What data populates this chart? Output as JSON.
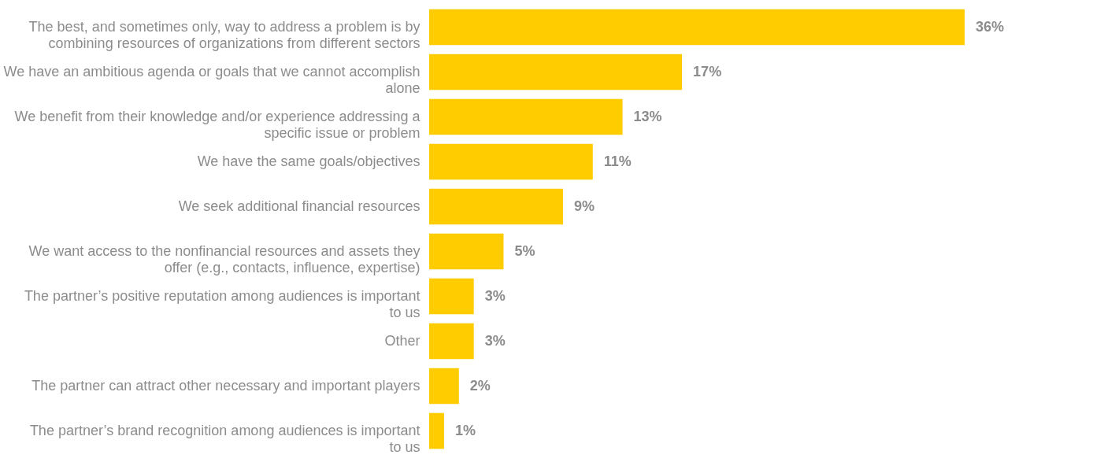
{
  "chart_data": {
    "type": "bar",
    "orientation": "horizontal",
    "color": "#ffcc00",
    "categories": [
      "The best, and sometimes only, way to address a problem is by combining resources of organizations from different sectors",
      "We have an ambitious agenda or goals that we cannot accomplish alone",
      "We benefit from their knowledge and/or experience addressing a specific issue or problem",
      "We have the same goals/objectives",
      "We seek additional financial resources",
      "We want access to the nonfinancial resources and assets they offer (e.g., contacts, influence, expertise)",
      "The partner’s positive reputation among audiences is important to us",
      "Other",
      "The partner can attract other necessary and important players",
      "The partner’s brand recognition among audiences is important to us"
    ],
    "values": [
      36,
      17,
      13,
      11,
      9,
      5,
      3,
      3,
      2,
      1
    ],
    "value_labels": [
      "36%",
      "17%",
      "13%",
      "11%",
      "9%",
      "5%",
      "3%",
      "3%",
      "2%",
      "1%"
    ]
  }
}
